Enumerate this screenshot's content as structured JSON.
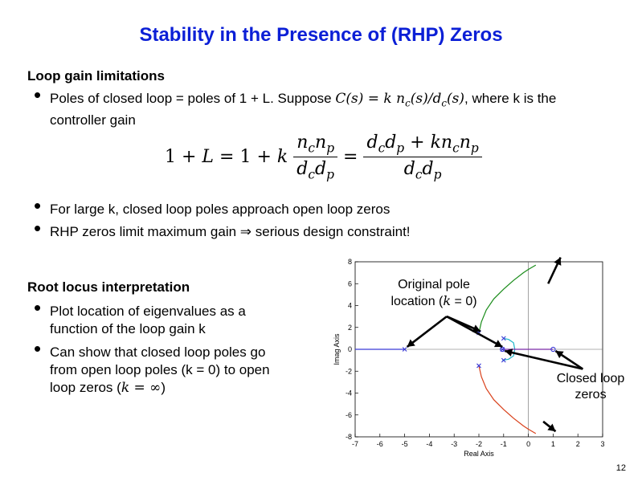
{
  "slide": {
    "title": "Stability in the Presence of (RHP) Zeros",
    "page_number": "12"
  },
  "section1": {
    "heading": "Loop gain limitations",
    "bullet1_a": "Poles of closed loop = poles of 1 + L.  Suppose ",
    "bullet1_math": "C(s) = k n",
    "bullet1_b": ", where k is the",
    "bullet1_c": "controller gain",
    "bullet2": "For large k, closed loop poles approach open loop zeros",
    "bullet3": "RHP zeros limit maximum gain ⇒ serious design constraint!"
  },
  "equation": {
    "lhs": "1 + L = 1 + k",
    "mid_eq": "=",
    "frac1_num": "n_c n_p",
    "frac1_den": "d_c d_p",
    "frac2_num": "d_c d_p + k n_c n_p",
    "frac2_den": "d_c d_p"
  },
  "section2": {
    "heading": "Root locus interpretation",
    "bullet1_a": "Plot location of eigenvalues as a",
    "bullet1_b": "function of the loop gain k",
    "bullet2_a": "Can show that closed loop poles go",
    "bullet2_b": "from open loop poles (k = 0) to open",
    "bullet2_c": "loop zeros (",
    "bullet2_math": "k = ∞",
    "bullet2_d": ")"
  },
  "annotations": {
    "orig_line1": "Original pole",
    "orig_line2": "location (",
    "orig_math": "k",
    "orig_line2b": " = 0)",
    "closed_line1": "Closed loop",
    "closed_line2": "zeros"
  },
  "chart_data": {
    "type": "scatter",
    "title": "",
    "xlabel": "Real Axis",
    "ylabel": "Imag Axis",
    "xlim": [
      -7,
      3
    ],
    "ylim": [
      -8,
      8
    ],
    "xticks": [
      "-7",
      "-6",
      "-5",
      "-4",
      "-3",
      "-2",
      "-1",
      "0",
      "1",
      "2",
      "3"
    ],
    "yticks": [
      "8",
      "6",
      "4",
      "2",
      "0",
      "-2",
      "-4",
      "-6",
      "-8"
    ],
    "grid": false,
    "poles": [
      [
        -5,
        0
      ],
      [
        -2,
        1.5
      ],
      [
        -2,
        -1.5
      ],
      [
        -1,
        1
      ],
      [
        -1,
        -1
      ],
      [
        -1.05,
        0
      ]
    ],
    "zeros": [
      [
        -1.05,
        0
      ],
      [
        1,
        0
      ]
    ],
    "series": [
      {
        "color": "#1a8c1a",
        "x": [
          -2,
          -1.9,
          -1.7,
          -1.4,
          -1.0,
          -0.6,
          -0.2,
          0,
          0.3
        ],
        "y": [
          1.5,
          2.5,
          3.6,
          4.6,
          5.5,
          6.3,
          7.0,
          7.3,
          7.7
        ]
      },
      {
        "color": "#d9401a",
        "x": [
          -2,
          -1.9,
          -1.7,
          -1.4,
          -1.0,
          -0.6,
          -0.2,
          0,
          0.3
        ],
        "y": [
          -1.5,
          -2.5,
          -3.6,
          -4.6,
          -5.5,
          -6.3,
          -7.0,
          -7.3,
          -7.7
        ]
      },
      {
        "color": "#1ab4c8",
        "x": [
          -1,
          -0.8,
          -0.6,
          -0.55,
          -0.6,
          -0.8,
          -1.05
        ],
        "y": [
          1,
          0.9,
          0.6,
          0,
          -0.6,
          -0.9,
          -1
        ]
      },
      {
        "color": "#3a3ad6",
        "x": [
          -7,
          -5
        ],
        "y": [
          0,
          0
        ]
      },
      {
        "color": "#7a2aa8",
        "x": [
          -1.05,
          1
        ],
        "y": [
          0,
          0
        ]
      }
    ]
  },
  "colors": {
    "title": "#0b1fd6",
    "marker": "#3a3ad6"
  }
}
